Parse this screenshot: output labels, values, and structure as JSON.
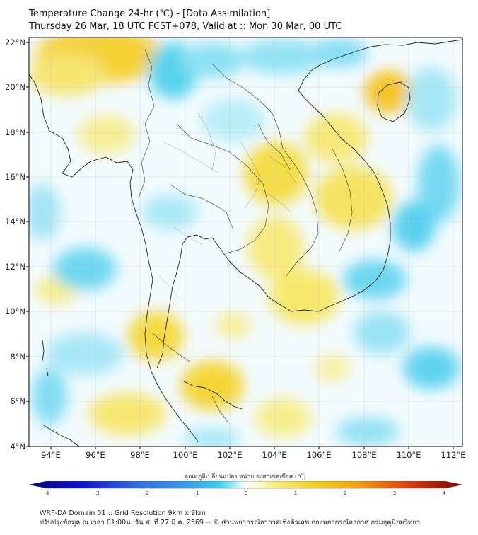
{
  "title": {
    "line1": "Temperature Change 24-hr (℃) - [Data Assimilation]",
    "line2": "Thursday 26 Mar, 18 UTC FCST+078, Valid at :: Mon 30 Mar, 00 UTC"
  },
  "map": {
    "lat_ticks": [
      "22°N",
      "20°N",
      "18°N",
      "16°N",
      "14°N",
      "12°N",
      "10°N",
      "8°N",
      "6°N",
      "4°N"
    ],
    "lon_ticks": [
      "94°E",
      "96°E",
      "98°E",
      "100°E",
      "102°E",
      "104°E",
      "106°E",
      "108°E",
      "110°E",
      "112°E"
    ],
    "lat_range": [
      4,
      22.2
    ],
    "lon_range": [
      93,
      112.5
    ],
    "grid": true,
    "field": "24-hr temperature change (°C)"
  },
  "colorbar": {
    "title": "อุณหภูมิเปลี่ยนแปลง หน่วย องศาเซลเซียส (℃)",
    "ticks": [
      "-4",
      "-3",
      "-2",
      "-1",
      "0",
      "1",
      "2",
      "3",
      "4"
    ],
    "range": [
      -4,
      4
    ],
    "colors": {
      "min": "#000080",
      "low": "#1010d0",
      "mid_low": "#3a9ae8",
      "near_zero_low": "#38d2ee",
      "zero": "#ffffff",
      "near_zero_high": "#f7f08a",
      "mid_high": "#f4c020",
      "high": "#e06010",
      "max": "#7a0000"
    }
  },
  "footer": {
    "line1": "WRF-DA Domain 01 :: Grid Resolution 9km x 9km",
    "line2": "ปรับปรุงข้อมูล ณ เวลา 01:00น. วัน ศ. ที่ 27 มี.ค. 2569 -- © ส่วนพยากรณ์อากาศเชิงตัวเลข กองพยากรณ์อากาศ กรมอุตุนิยมวิทยา"
  }
}
